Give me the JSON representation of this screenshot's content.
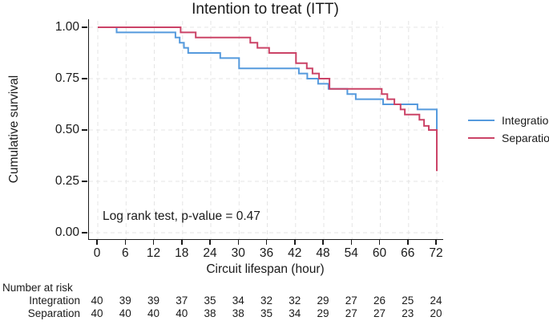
{
  "chart_data": {
    "type": "line",
    "subtype": "kaplan-meier-step",
    "title": "Intention to treat (ITT)",
    "xlabel": "Circuit lifespan (hour)",
    "ylabel": "Cumulative survival",
    "xlim": [
      0,
      72
    ],
    "ylim": [
      0.0,
      1.0
    ],
    "xticks": [
      0,
      6,
      12,
      18,
      24,
      30,
      36,
      42,
      48,
      54,
      60,
      66,
      72
    ],
    "yticks": [
      1.0,
      0.75,
      0.5,
      0.25,
      0.0
    ],
    "ytick_labels": [
      "1.00",
      "0.75",
      "0.50",
      "0.25",
      "0.00"
    ],
    "grid": true,
    "legend_position": "right",
    "annotation": "Log rank test, p-value = 0.47",
    "series": [
      {
        "name": "Integration",
        "color": "#559add",
        "step_points": [
          [
            0,
            1.0
          ],
          [
            4,
            0.975
          ],
          [
            16.5,
            0.95
          ],
          [
            17.4,
            0.925
          ],
          [
            18.3,
            0.9
          ],
          [
            19.2,
            0.875
          ],
          [
            26,
            0.85
          ],
          [
            30,
            0.8
          ],
          [
            42.7,
            0.775
          ],
          [
            44.5,
            0.75
          ],
          [
            46.8,
            0.725
          ],
          [
            49.0,
            0.7
          ],
          [
            53.0,
            0.675
          ],
          [
            54.8,
            0.65
          ],
          [
            60.6,
            0.625
          ],
          [
            67.9,
            0.6
          ],
          [
            72,
            0.5
          ]
        ]
      },
      {
        "name": "Separation",
        "color": "#cb4367",
        "step_points": [
          [
            0,
            1.0
          ],
          [
            17.6,
            0.975
          ],
          [
            20.8,
            0.95
          ],
          [
            32.4,
            0.925
          ],
          [
            33.9,
            0.9
          ],
          [
            36.4,
            0.875
          ],
          [
            42.1,
            0.825
          ],
          [
            44.4,
            0.8
          ],
          [
            45.6,
            0.775
          ],
          [
            47.0,
            0.75
          ],
          [
            49.2,
            0.7
          ],
          [
            60.3,
            0.675
          ],
          [
            61.5,
            0.65
          ],
          [
            63.0,
            0.625
          ],
          [
            64.3,
            0.6
          ],
          [
            65.2,
            0.575
          ],
          [
            68.3,
            0.55
          ],
          [
            69.3,
            0.52
          ],
          [
            70.3,
            0.5
          ],
          [
            72,
            0.3
          ]
        ]
      }
    ],
    "number_at_risk": {
      "title": "Number at risk",
      "times": [
        0,
        6,
        12,
        18,
        24,
        30,
        36,
        42,
        48,
        54,
        60,
        66,
        72
      ],
      "rows": [
        {
          "name": "Integration",
          "values": [
            40,
            39,
            39,
            37,
            35,
            34,
            32,
            32,
            29,
            27,
            26,
            25,
            24
          ]
        },
        {
          "name": "Separation",
          "values": [
            40,
            40,
            40,
            40,
            38,
            38,
            35,
            34,
            29,
            27,
            27,
            23,
            20
          ]
        }
      ]
    },
    "colors": {
      "axis": "#1a1a1a",
      "grid": "#e4e4e4"
    }
  }
}
